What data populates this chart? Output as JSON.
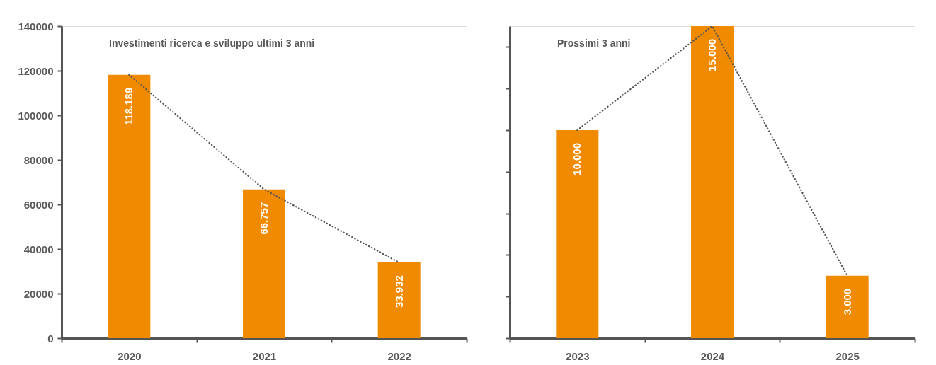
{
  "chart_data": [
    {
      "type": "bar",
      "title": "Investimenti ricerca e sviluppo ultimi 3 anni",
      "categories": [
        "2020",
        "2021",
        "2022"
      ],
      "series": [
        {
          "color": "#f08a00",
          "values": [
            118189,
            66757,
            33932
          ],
          "value_labels": [
            "118.189",
            "66.757",
            "33.932"
          ]
        },
        {
          "type": "line",
          "color": "#555555",
          "values": [
            118189,
            66757,
            33932
          ],
          "line_style": "dotted",
          "marker": "none"
        }
      ],
      "ylim": [
        0,
        140000
      ],
      "yticks": [
        0,
        20000,
        40000,
        60000,
        80000,
        100000,
        120000,
        140000
      ]
    },
    {
      "type": "bar",
      "title": "Prossimi 3 anni",
      "categories": [
        "2023",
        "2024",
        "2025"
      ],
      "series": [
        {
          "color": "#f08a00",
          "values": [
            10000,
            15000,
            3000
          ],
          "value_labels": [
            "10.000",
            "15.000",
            "3.000"
          ]
        },
        {
          "type": "line",
          "color": "#555555",
          "values": [
            10000,
            15000,
            3000
          ],
          "line_style": "dotted",
          "marker": "none"
        }
      ],
      "ylim": [
        0,
        15000
      ],
      "yticks": [
        {
          "value": 0,
          "label": null
        },
        {
          "value": 2000,
          "label": null
        },
        {
          "value": 4000,
          "label": null
        },
        {
          "value": 6000,
          "label": null
        },
        {
          "value": 8000,
          "label": null
        },
        {
          "value": 10000,
          "label": null
        },
        {
          "value": 12000,
          "label": null
        },
        {
          "value": 14000,
          "label": null
        }
      ],
      "tick_labels": "x"
    }
  ]
}
